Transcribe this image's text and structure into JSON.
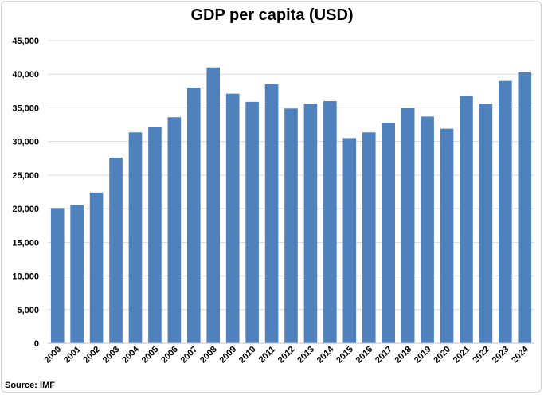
{
  "chart_data": {
    "type": "bar",
    "title": "GDP per capita (USD)",
    "xlabel": "",
    "ylabel": "",
    "source": "Source: IMF",
    "categories": [
      "2000",
      "2001",
      "2002",
      "2003",
      "2004",
      "2005",
      "2006",
      "2007",
      "2008",
      "2009",
      "2010",
      "2011",
      "2012",
      "2013",
      "2014",
      "2015",
      "2016",
      "2017",
      "2018",
      "2019",
      "2020",
      "2021",
      "2022",
      "2023",
      "2024"
    ],
    "values": [
      20100,
      20500,
      22400,
      27600,
      31350,
      32100,
      33600,
      38000,
      41000,
      37100,
      35900,
      38500,
      34900,
      35600,
      36000,
      30500,
      31350,
      32800,
      35000,
      33700,
      31900,
      36800,
      35600,
      39000,
      40300
    ],
    "ylim": [
      0,
      45000
    ],
    "yticks": [
      0,
      5000,
      10000,
      15000,
      20000,
      25000,
      30000,
      35000,
      40000,
      45000
    ],
    "ytick_labels": [
      "0",
      "5,000",
      "10,000",
      "15,000",
      "20,000",
      "25,000",
      "30,000",
      "35,000",
      "40,000",
      "45,000"
    ],
    "grid": true,
    "legend": "none",
    "bar_color": "#4f81bd",
    "grid_color": "#d9d9d9"
  }
}
